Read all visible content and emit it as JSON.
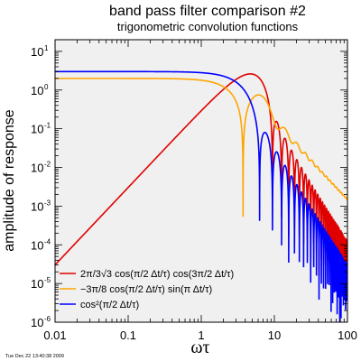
{
  "chart_data": {
    "type": "line",
    "title": "band pass filter comparison #2",
    "subtitle": "trigonometric convolution functions",
    "xlabel": "ωτ",
    "ylabel": "amplitude of response",
    "xscale": "log",
    "yscale": "log",
    "xlim": [
      0.01,
      100
    ],
    "ylim": [
      1e-06,
      20
    ],
    "x_tick_labels": [
      "0.01",
      "0.1",
      "1",
      "10",
      "100"
    ],
    "y_tick_labels": [
      {
        "base": "10",
        "exp": "1"
      },
      {
        "base": "10",
        "exp": "0"
      },
      {
        "base": "10",
        "exp": "-1"
      },
      {
        "base": "10",
        "exp": "-2"
      },
      {
        "base": "10",
        "exp": "-3"
      },
      {
        "base": "10",
        "exp": "-4"
      },
      {
        "base": "10",
        "exp": "-5"
      },
      {
        "base": "10",
        "exp": "-6"
      }
    ],
    "background": "#f0f0f0",
    "legend_position": "bottom-left",
    "series": [
      {
        "name": "2π/3√3 cos(π/2 Δt/τ) cos(3π/2 Δt/τ)",
        "color": "#e00000"
      },
      {
        "name": "−3π/8 cos(π/2 Δt/τ) sin(π Δt/τ)",
        "color": "#ffa500"
      },
      {
        "name": "cos²(π/2 Δt/τ)",
        "color": "#0000ff"
      }
    ]
  },
  "timestamp": "Tue Dec 22 13:40:38 2009"
}
